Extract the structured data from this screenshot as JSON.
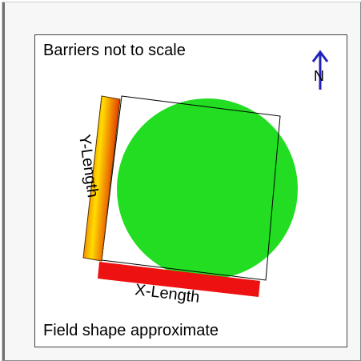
{
  "panel": {
    "top_caption": "Barriers not to scale",
    "bottom_caption": "Field shape approximate"
  },
  "diagram": {
    "north_label": "N",
    "north_icon": "north-arrow-icon",
    "x_length_label": "X-Length",
    "y_length_label": "Y-Length"
  },
  "colors": {
    "field": "#22dd22",
    "x_barrier": "#ee1111",
    "y_barrier_gradient": [
      "#dd1100",
      "#ffdd00"
    ],
    "north_arrow": "#2222bb",
    "outline": "#000000"
  }
}
